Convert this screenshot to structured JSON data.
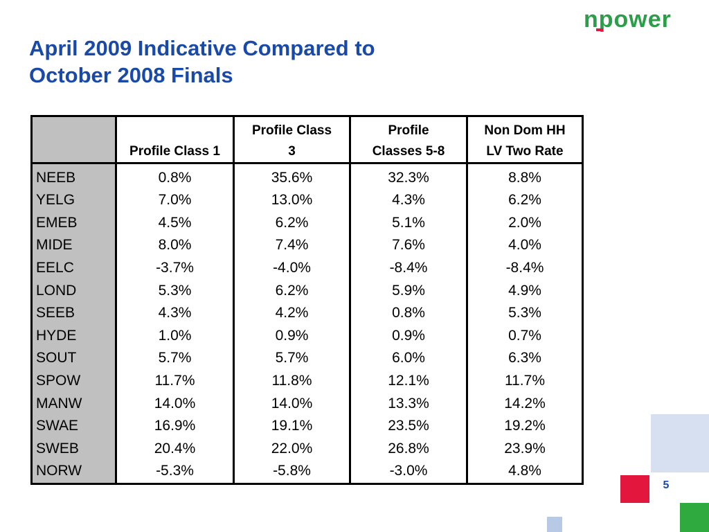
{
  "logo": {
    "text": "npower",
    "color": "#2c9e4a",
    "accent": "#e3173e"
  },
  "slide": {
    "title_line1": "April 2009 Indicative Compared to",
    "title_line2": "October 2008 Finals",
    "title_color": "#1a4aa8",
    "page_number": "5"
  },
  "table": {
    "headers": [
      [
        "",
        ""
      ],
      [
        "",
        "Profile Class 1"
      ],
      [
        "Profile Class",
        "3"
      ],
      [
        "Profile",
        "Classes 5-8"
      ],
      [
        "Non Dom HH",
        "LV Two Rate"
      ]
    ],
    "rows": [
      [
        "NEEB",
        "0.8%",
        "35.6%",
        "32.3%",
        "8.8%"
      ],
      [
        "YELG",
        "7.0%",
        "13.0%",
        "4.3%",
        "6.2%"
      ],
      [
        "EMEB",
        "4.5%",
        "6.2%",
        "5.1%",
        "2.0%"
      ],
      [
        "MIDE",
        "8.0%",
        "7.4%",
        "7.6%",
        "4.0%"
      ],
      [
        "EELC",
        "-3.7%",
        "-4.0%",
        "-8.4%",
        "-8.4%"
      ],
      [
        "LOND",
        "5.3%",
        "6.2%",
        "5.9%",
        "4.9%"
      ],
      [
        "SEEB",
        "4.3%",
        "4.2%",
        "0.8%",
        "5.3%"
      ],
      [
        "HYDE",
        "1.0%",
        "0.9%",
        "0.9%",
        "0.7%"
      ],
      [
        "SOUT",
        "5.7%",
        "5.7%",
        "6.0%",
        "6.3%"
      ],
      [
        "SPOW",
        "11.7%",
        "11.8%",
        "12.1%",
        "11.7%"
      ],
      [
        "MANW",
        "14.0%",
        "14.0%",
        "13.3%",
        "14.2%"
      ],
      [
        "SWAE",
        "16.9%",
        "19.1%",
        "23.5%",
        "19.2%"
      ],
      [
        "SWEB",
        "20.4%",
        "22.0%",
        "26.8%",
        "23.9%"
      ],
      [
        "NORW",
        "-5.3%",
        "-5.8%",
        "-3.0%",
        "4.8%"
      ]
    ]
  },
  "decor_colors": {
    "light_blue": "#d6e0f0",
    "red": "#e3173e",
    "green": "#2eaa3e",
    "blue": "#b8c9e6"
  }
}
